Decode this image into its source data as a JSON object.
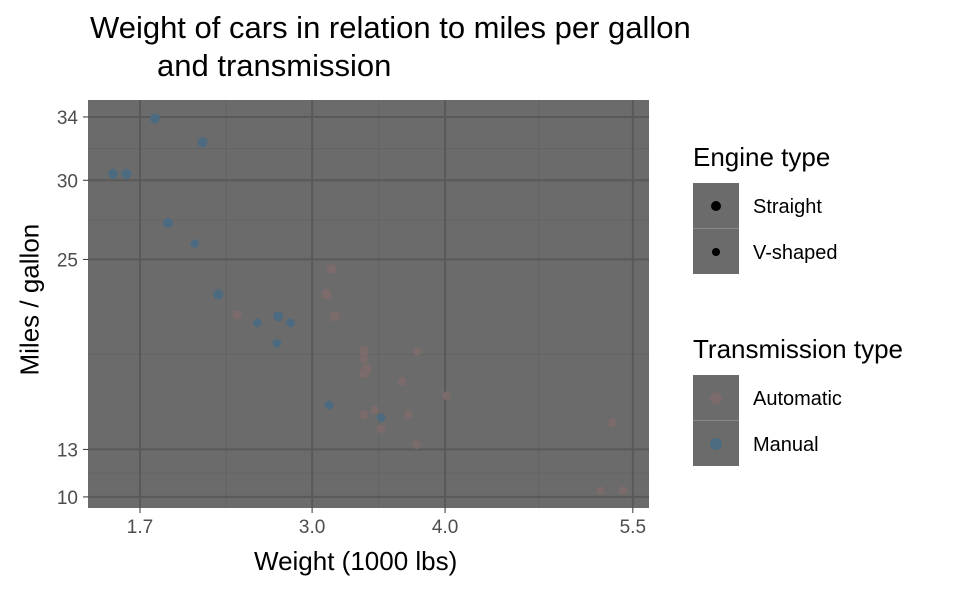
{
  "chart_data": {
    "type": "scatter",
    "title": "Weight of cars in relation to miles per gallon\nand transmission",
    "title_lines": [
      "Weight of cars in relation to miles per gallon",
      "and transmission"
    ],
    "xlabel": "Weight (1000 lbs)",
    "ylabel": "Miles / gallon",
    "xlim": [
      1.321,
      5.624
    ],
    "ylim": [
      9.3,
      35.07
    ],
    "x_ticks": [
      {
        "v": 1.72,
        "label": "1.7"
      },
      {
        "v": 3.04,
        "label": "3.0"
      },
      {
        "v": 4.06,
        "label": "4.0"
      },
      {
        "v": 5.5,
        "label": "5.5"
      }
    ],
    "y_ticks": [
      {
        "v": 34,
        "label": "34"
      },
      {
        "v": 30,
        "label": "30"
      },
      {
        "v": 25,
        "label": "25"
      },
      {
        "v": 13,
        "label": "13"
      },
      {
        "v": 10,
        "label": "10"
      }
    ],
    "grid": true,
    "legend_placement": "right",
    "legends": [
      {
        "title": "Engine type",
        "entries": [
          {
            "label": "Straight",
            "vs": 1
          },
          {
            "label": "V-shaped",
            "vs": 0
          }
        ]
      },
      {
        "title": "Transmission type",
        "entries": [
          {
            "label": "Automatic",
            "am": 0
          },
          {
            "label": "Manual",
            "am": 1
          }
        ]
      }
    ],
    "colors": {
      "panel": "#6b6b6b",
      "grid_major": "#595959",
      "grid_minor": "#636363",
      "automatic": "#7b6b6b",
      "manual": "#4c6b81"
    },
    "points": [
      [
        2.62,
        21.0,
        0,
        1
      ],
      [
        2.875,
        21.0,
        0,
        1
      ],
      [
        2.32,
        22.8,
        1,
        1
      ],
      [
        3.215,
        21.4,
        1,
        0
      ],
      [
        3.44,
        18.7,
        0,
        0
      ],
      [
        3.46,
        18.1,
        1,
        0
      ],
      [
        3.57,
        14.3,
        0,
        0
      ],
      [
        3.19,
        24.4,
        1,
        0
      ],
      [
        3.15,
        22.8,
        1,
        0
      ],
      [
        3.44,
        19.2,
        1,
        0
      ],
      [
        3.44,
        17.8,
        1,
        0
      ],
      [
        4.07,
        16.4,
        0,
        0
      ],
      [
        3.73,
        17.3,
        0,
        0
      ],
      [
        3.78,
        15.2,
        0,
        0
      ],
      [
        5.25,
        10.4,
        0,
        0
      ],
      [
        5.424,
        10.4,
        0,
        0
      ],
      [
        5.345,
        14.7,
        0,
        0
      ],
      [
        2.2,
        32.4,
        1,
        1
      ],
      [
        1.615,
        30.4,
        1,
        1
      ],
      [
        1.835,
        33.9,
        1,
        1
      ],
      [
        2.465,
        21.5,
        1,
        0
      ],
      [
        3.52,
        15.5,
        0,
        0
      ],
      [
        3.435,
        15.2,
        0,
        0
      ],
      [
        3.84,
        13.3,
        0,
        0
      ],
      [
        3.845,
        19.2,
        0,
        0
      ],
      [
        1.935,
        27.3,
        1,
        1
      ],
      [
        2.14,
        26.0,
        0,
        1
      ],
      [
        1.513,
        30.4,
        1,
        1
      ],
      [
        3.17,
        15.8,
        0,
        1
      ],
      [
        2.77,
        19.7,
        0,
        1
      ],
      [
        3.57,
        15.0,
        0,
        1
      ],
      [
        2.78,
        21.4,
        1,
        1
      ]
    ],
    "point_fields": [
      "wt",
      "mpg",
      "vs",
      "am"
    ]
  }
}
